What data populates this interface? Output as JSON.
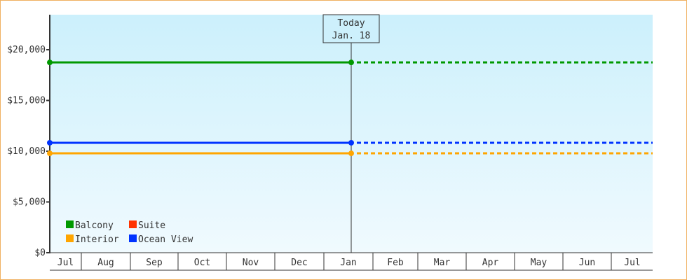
{
  "chart_data": {
    "type": "line",
    "x_range": [
      "Jul 11",
      "Jul 28"
    ],
    "ylim": [
      0,
      23450
    ],
    "y_ticks": [
      0,
      5000,
      10000,
      15000,
      20000
    ],
    "y_tick_labels": [
      "$0",
      "$5,000",
      "$10,000",
      "$15,000",
      "$20,000"
    ],
    "months": [
      "Jul",
      "Aug",
      "Sep",
      "Oct",
      "Nov",
      "Dec",
      "Jan",
      "Feb",
      "Mar",
      "Apr",
      "May",
      "Jun",
      "Jul"
    ],
    "today": {
      "label": "Today",
      "date": "Jan. 18"
    },
    "series": [
      {
        "name": "Balcony",
        "color": "#009900",
        "value": 18750,
        "projected": true
      },
      {
        "name": "Suite",
        "color": "#ff3300",
        "value": null
      },
      {
        "name": "Interior",
        "color": "#ffa500",
        "value": 9790,
        "projected": true
      },
      {
        "name": "Ocean View",
        "color": "#0033ff",
        "value": 10830,
        "projected": true
      }
    ],
    "legend_placement": "bottom-left",
    "background_gradient": [
      "#ccf0fc",
      "#f0fafe"
    ]
  }
}
